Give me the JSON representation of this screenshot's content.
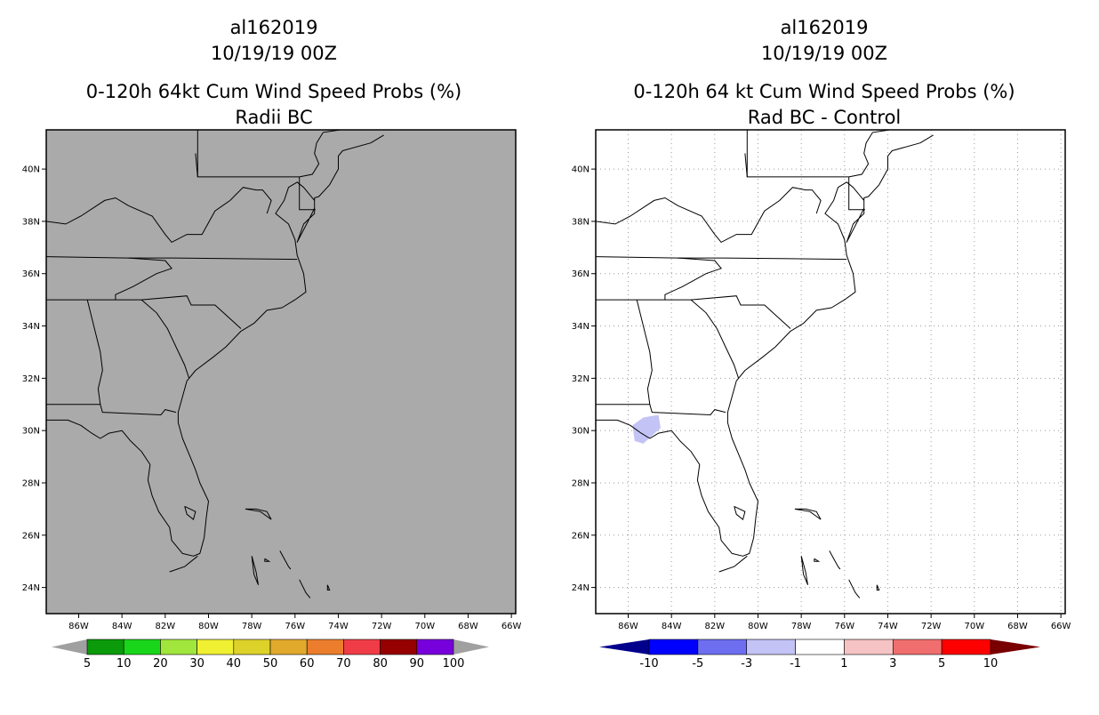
{
  "panels": [
    {
      "storm": "al162019",
      "datetime": "10/19/19 00Z",
      "title": "0-120h 64kt Cum Wind Speed Probs (%)",
      "subtitle": "Radii BC",
      "map_fill": "#aaaaaa",
      "grid": false,
      "colorbar": {
        "colors": [
          "#0a9a0a",
          "#1ad61a",
          "#a0e63c",
          "#f0f032",
          "#dcd22a",
          "#e1aa2d",
          "#eb7d2d",
          "#f03c46",
          "#960000",
          "#7800dc"
        ],
        "end_colors": [
          "#a0a0a0",
          "#a0a0a0"
        ],
        "labels": [
          "5",
          "10",
          "20",
          "30",
          "40",
          "50",
          "60",
          "70",
          "80",
          "90",
          "100"
        ],
        "label_mode": "edges_from_first"
      }
    },
    {
      "storm": "al162019",
      "datetime": "10/19/19 00Z",
      "title": "0-120h 64 kt Cum Wind Speed Probs (%)",
      "subtitle": "Rad BC - Control",
      "map_fill": "#ffffff",
      "grid": true,
      "colorbar": {
        "colors": [
          "#0000ff",
          "#6e6ef0",
          "#c3c3f5",
          "#ffffff",
          "#f5c3c3",
          "#f06e6e",
          "#ff0000"
        ],
        "end_colors": [
          "#00008c",
          "#780000"
        ],
        "labels": [
          "-10",
          "-5",
          "-3",
          "-1",
          "1",
          "3",
          "5",
          "10"
        ],
        "label_mode": "all_edges"
      }
    }
  ],
  "axes": {
    "lon_ticks": [
      "86W",
      "84W",
      "82W",
      "80W",
      "78W",
      "76W",
      "74W",
      "72W",
      "70W",
      "68W",
      "66W"
    ],
    "lat_ticks": [
      "40N",
      "38N",
      "36N",
      "34N",
      "32N",
      "30N",
      "28N",
      "26N",
      "24N"
    ]
  },
  "map_data": {
    "lon_range": [
      -87.5,
      -65.8
    ],
    "lat_range": [
      23.0,
      41.5
    ],
    "diff_patch": {
      "value_range": [
        -3,
        -1
      ],
      "color": "#c3c3f5",
      "polygon": [
        [
          -85.7,
          29.6
        ],
        [
          -85.8,
          30.2
        ],
        [
          -85.3,
          30.5
        ],
        [
          -84.6,
          30.6
        ],
        [
          -84.5,
          30.1
        ],
        [
          -84.9,
          29.8
        ],
        [
          -85.3,
          29.5
        ]
      ]
    },
    "coast": [
      [
        -87.5,
        30.4
      ],
      [
        -86.5,
        30.4
      ],
      [
        -85.9,
        30.2
      ],
      [
        -85.4,
        29.9
      ],
      [
        -85.0,
        29.7
      ],
      [
        -84.6,
        29.9
      ],
      [
        -84.0,
        30.0
      ],
      [
        -83.6,
        29.6
      ],
      [
        -83.1,
        29.2
      ],
      [
        -82.7,
        28.7
      ],
      [
        -82.8,
        28.1
      ],
      [
        -82.6,
        27.5
      ],
      [
        -82.3,
        26.9
      ],
      [
        -81.8,
        26.3
      ],
      [
        -81.7,
        25.8
      ],
      [
        -81.2,
        25.3
      ],
      [
        -80.7,
        25.2
      ],
      [
        -80.4,
        25.3
      ],
      [
        -80.2,
        25.9
      ],
      [
        -80.1,
        26.7
      ],
      [
        -80.0,
        27.3
      ],
      [
        -80.4,
        28.0
      ],
      [
        -80.6,
        28.5
      ],
      [
        -80.9,
        29.1
      ],
      [
        -81.2,
        29.7
      ],
      [
        -81.4,
        30.3
      ],
      [
        -81.4,
        30.7
      ],
      [
        -81.2,
        31.3
      ],
      [
        -81.0,
        31.9
      ],
      [
        -80.6,
        32.3
      ],
      [
        -79.8,
        32.8
      ],
      [
        -79.2,
        33.2
      ],
      [
        -78.5,
        33.8
      ],
      [
        -77.9,
        34.1
      ],
      [
        -77.3,
        34.6
      ],
      [
        -76.6,
        34.7
      ],
      [
        -76.0,
        35.0
      ],
      [
        -75.5,
        35.3
      ],
      [
        -75.6,
        36.0
      ],
      [
        -75.9,
        36.7
      ],
      [
        -76.0,
        37.3
      ],
      [
        -76.3,
        37.9
      ],
      [
        -76.9,
        38.3
      ],
      [
        -76.5,
        38.8
      ],
      [
        -76.3,
        39.3
      ],
      [
        -75.9,
        39.5
      ],
      [
        -75.6,
        39.3
      ],
      [
        -75.1,
        38.8
      ],
      [
        -75.1,
        38.3
      ],
      [
        -75.6,
        37.9
      ],
      [
        -75.9,
        37.2
      ],
      [
        -75.4,
        38.0
      ],
      [
        -75.1,
        38.5
      ],
      [
        -75.1,
        38.9
      ],
      [
        -74.9,
        38.95
      ],
      [
        -74.4,
        39.4
      ],
      [
        -74.0,
        40.0
      ],
      [
        -74.0,
        40.5
      ],
      [
        -73.8,
        40.7
      ],
      [
        -72.5,
        41.0
      ],
      [
        -71.9,
        41.3
      ]
    ],
    "states": [
      [
        [
          -80.5,
          41.5
        ],
        [
          -80.5,
          39.7
        ],
        [
          -75.8,
          39.7
        ]
      ],
      [
        [
          -75.8,
          39.7
        ],
        [
          -75.8,
          38.45
        ],
        [
          -75.05,
          38.45
        ]
      ],
      [
        [
          -75.8,
          39.7
        ],
        [
          -75.2,
          39.8
        ],
        [
          -74.9,
          40.2
        ],
        [
          -75.1,
          40.6
        ],
        [
          -75.0,
          41.0
        ],
        [
          -74.7,
          41.4
        ],
        [
          -73.9,
          41.5
        ]
      ],
      [
        [
          -83.7,
          38.6
        ],
        [
          -82.6,
          38.2
        ],
        [
          -82.0,
          37.5
        ],
        [
          -81.7,
          37.2
        ],
        [
          -81.0,
          37.5
        ],
        [
          -80.3,
          37.5
        ],
        [
          -79.7,
          38.4
        ],
        [
          -79.0,
          38.8
        ],
        [
          -78.4,
          39.3
        ],
        [
          -77.8,
          39.2
        ],
        [
          -77.5,
          39.2
        ],
        [
          -77.1,
          38.8
        ],
        [
          -77.3,
          38.3
        ]
      ],
      [
        [
          -80.5,
          39.7
        ],
        [
          -80.6,
          40.6
        ]
      ],
      [
        [
          -87.5,
          38.0
        ],
        [
          -86.6,
          37.9
        ],
        [
          -85.9,
          38.2
        ],
        [
          -84.8,
          38.8
        ],
        [
          -84.3,
          38.9
        ],
        [
          -83.7,
          38.6
        ]
      ],
      [
        [
          -87.5,
          36.65
        ],
        [
          -83.7,
          36.6
        ],
        [
          -81.6,
          36.6
        ],
        [
          -75.9,
          36.55
        ]
      ],
      [
        [
          -83.7,
          36.6
        ],
        [
          -82.0,
          36.5
        ],
        [
          -81.7,
          36.2
        ],
        [
          -82.4,
          36.0
        ],
        [
          -83.5,
          35.5
        ],
        [
          -84.3,
          35.2
        ],
        [
          -84.3,
          35.0
        ]
      ],
      [
        [
          -87.5,
          35.0
        ],
        [
          -84.3,
          35.0
        ],
        [
          -83.1,
          35.0
        ],
        [
          -81.0,
          35.15
        ],
        [
          -80.8,
          34.8
        ],
        [
          -79.7,
          34.8
        ],
        [
          -78.5,
          33.9
        ]
      ],
      [
        [
          -85.6,
          35.0
        ],
        [
          -85.0,
          33.0
        ],
        [
          -84.9,
          32.3
        ],
        [
          -85.1,
          31.6
        ],
        [
          -85.0,
          31.0
        ]
      ],
      [
        [
          -83.1,
          35.0
        ],
        [
          -82.4,
          34.5
        ],
        [
          -81.9,
          33.9
        ],
        [
          -81.5,
          33.2
        ],
        [
          -81.1,
          32.5
        ],
        [
          -80.9,
          32.0
        ]
      ],
      [
        [
          -87.5,
          31.0
        ],
        [
          -85.0,
          31.0
        ],
        [
          -84.9,
          30.7
        ],
        [
          -82.2,
          30.6
        ],
        [
          -82.0,
          30.8
        ],
        [
          -81.5,
          30.7
        ]
      ],
      [
        [
          -87.5,
          35.0
        ],
        [
          -87.5,
          31.0
        ]
      ]
    ],
    "islands": [
      [
        [
          -81.1,
          27.1
        ],
        [
          -80.6,
          26.9
        ],
        [
          -80.7,
          26.6
        ],
        [
          -81.0,
          26.8
        ],
        [
          -81.1,
          27.1
        ]
      ],
      [
        [
          -78.3,
          27.0
        ],
        [
          -77.6,
          26.9
        ],
        [
          -77.1,
          26.6
        ],
        [
          -77.3,
          26.9
        ],
        [
          -77.8,
          27.0
        ],
        [
          -78.3,
          27.0
        ]
      ],
      [
        [
          -78.0,
          25.2
        ],
        [
          -77.8,
          24.6
        ],
        [
          -77.7,
          24.1
        ],
        [
          -77.9,
          24.5
        ],
        [
          -78.0,
          25.2
        ]
      ],
      [
        [
          -77.4,
          25.1
        ],
        [
          -77.2,
          25.0
        ],
        [
          -77.4,
          25.0
        ],
        [
          -77.4,
          25.1
        ]
      ],
      [
        [
          -76.7,
          25.4
        ],
        [
          -76.3,
          24.8
        ],
        [
          -76.2,
          24.7
        ]
      ],
      [
        [
          -75.8,
          24.3
        ],
        [
          -75.5,
          23.8
        ],
        [
          -75.3,
          23.6
        ]
      ],
      [
        [
          -74.5,
          24.1
        ],
        [
          -74.4,
          23.9
        ],
        [
          -74.5,
          23.9
        ],
        [
          -74.5,
          24.1
        ]
      ],
      [
        [
          -73.7,
          22.9
        ],
        [
          -73.3,
          23.0
        ],
        [
          -73.1,
          22.9
        ]
      ],
      [
        [
          -81.8,
          24.6
        ],
        [
          -81.1,
          24.8
        ],
        [
          -80.5,
          25.2
        ]
      ]
    ]
  }
}
